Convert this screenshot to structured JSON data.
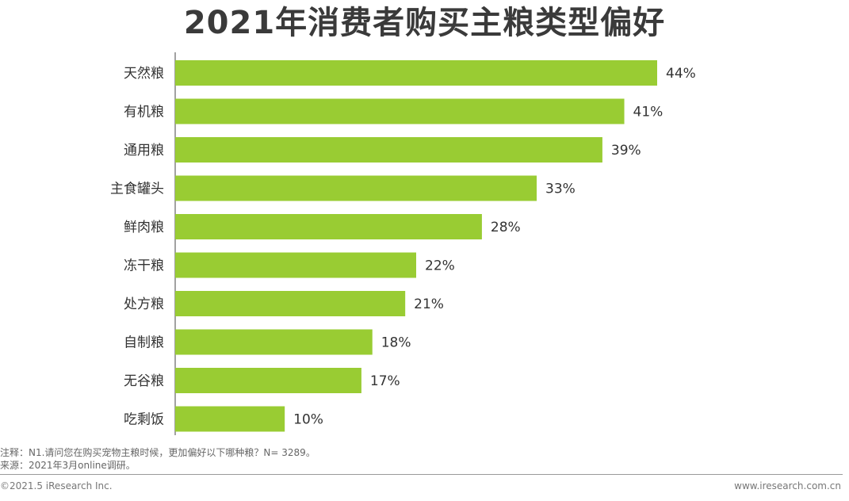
{
  "chart_data": {
    "type": "bar",
    "orientation": "horizontal",
    "title": "2021年消费者购买主粮类型偏好",
    "categories": [
      "天然粮",
      "有机粮",
      "通用粮",
      "主食罐头",
      "鲜肉粮",
      "冻干粮",
      "处方粮",
      "自制粮",
      "无谷粮",
      "吃剩饭"
    ],
    "values": [
      44,
      41,
      39,
      33,
      28,
      22,
      21,
      18,
      17,
      10
    ],
    "value_labels": [
      "44%",
      "41%",
      "39%",
      "33%",
      "28%",
      "22%",
      "21%",
      "18%",
      "17%",
      "10%"
    ],
    "unit": "%",
    "bar_color": "#99cc33",
    "xlim": [
      0,
      44
    ],
    "grid": false,
    "legend": "none"
  },
  "notes": {
    "note": "注释：N1.请问您在购买宠物主粮时候，更加偏好以下哪种粮？N= 3289。",
    "source": "来源：2021年3月online调研。"
  },
  "footer": {
    "copyright": "©2021.5 iResearch Inc.",
    "website": "www.iresearch.com.cn"
  }
}
